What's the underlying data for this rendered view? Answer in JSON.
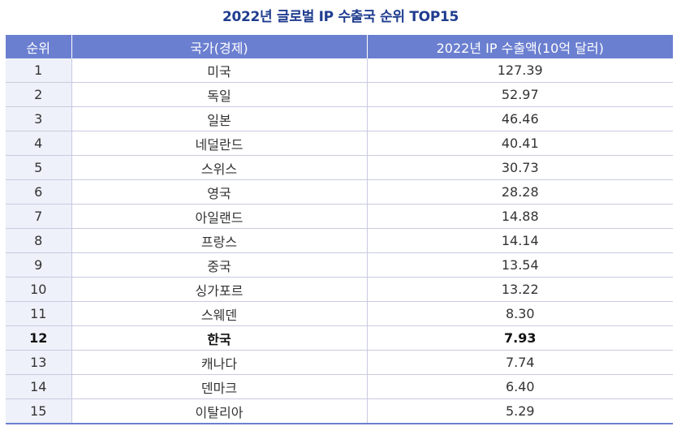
{
  "title": "2022년 글로벌 IP 수출국 순위 TOP15",
  "headers": {
    "rank": "순위",
    "country": "국가(경제)",
    "value": "2022년 IP 수출액(10억 달러)"
  },
  "rows": [
    {
      "rank": "1",
      "country": "미국",
      "value": "127.39"
    },
    {
      "rank": "2",
      "country": "독일",
      "value": "52.97"
    },
    {
      "rank": "3",
      "country": "일본",
      "value": "46.46"
    },
    {
      "rank": "4",
      "country": "네덜란드",
      "value": "40.41"
    },
    {
      "rank": "5",
      "country": "스위스",
      "value": "30.73"
    },
    {
      "rank": "6",
      "country": "영국",
      "value": "28.28"
    },
    {
      "rank": "7",
      "country": "아일랜드",
      "value": "14.88"
    },
    {
      "rank": "8",
      "country": "프랑스",
      "value": "14.14"
    },
    {
      "rank": "9",
      "country": "중국",
      "value": "13.54"
    },
    {
      "rank": "10",
      "country": "싱가포르",
      "value": "13.22"
    },
    {
      "rank": "11",
      "country": "스웨덴",
      "value": "8.30"
    },
    {
      "rank": "12",
      "country": "한국",
      "value": "7.93"
    },
    {
      "rank": "13",
      "country": "캐나다",
      "value": "7.74"
    },
    {
      "rank": "14",
      "country": "덴마크",
      "value": "6.40"
    },
    {
      "rank": "15",
      "country": "이탈리아",
      "value": "5.29"
    }
  ],
  "highlight_rank": "12",
  "colors": {
    "title": "#1f3c8f",
    "header_bg": "#6b7fd0",
    "rank_cell_bg": "#eef1f9",
    "grid": "#c9cbe0"
  },
  "chart_data": {
    "type": "table",
    "title": "2022년 글로벌 IP 수출국 순위 TOP15",
    "columns": [
      "순위",
      "국가(경제)",
      "2022년 IP 수출액(10억 달러)"
    ],
    "rows": [
      [
        "1",
        "미국",
        127.39
      ],
      [
        "2",
        "독일",
        52.97
      ],
      [
        "3",
        "일본",
        46.46
      ],
      [
        "4",
        "네덜란드",
        40.41
      ],
      [
        "5",
        "스위스",
        30.73
      ],
      [
        "6",
        "영국",
        28.28
      ],
      [
        "7",
        "아일랜드",
        14.88
      ],
      [
        "8",
        "프랑스",
        14.14
      ],
      [
        "9",
        "중국",
        13.54
      ],
      [
        "10",
        "싱가포르",
        13.22
      ],
      [
        "11",
        "스웨덴",
        8.3
      ],
      [
        "12",
        "한국",
        7.93
      ],
      [
        "13",
        "캐나다",
        7.74
      ],
      [
        "14",
        "덴마크",
        6.4
      ],
      [
        "15",
        "이탈리아",
        5.29
      ]
    ]
  }
}
